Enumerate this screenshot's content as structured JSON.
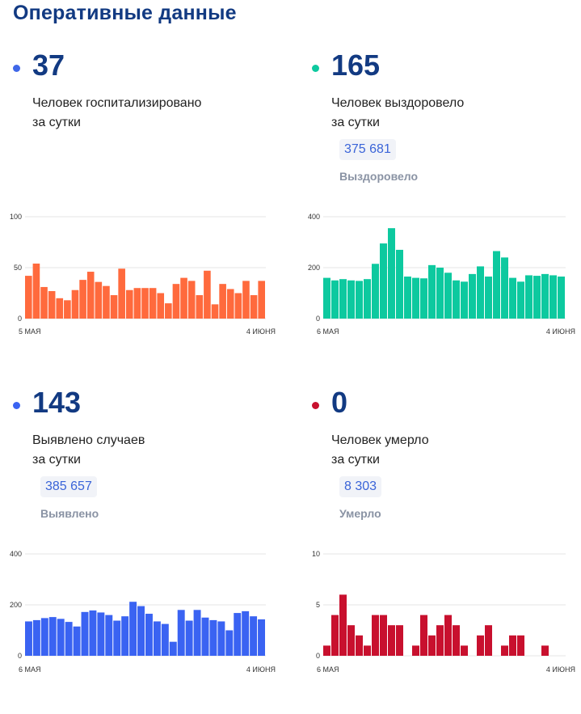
{
  "title": "Оперативные данные",
  "panels": [
    {
      "value": "37",
      "desc_line1": "Человек госпитализировано",
      "desc_line2": "за сутки",
      "color": "#ff6a3d",
      "dot_color": "#3f67e8"
    },
    {
      "value": "165",
      "desc_line1": "Человек выздоровело",
      "desc_line2": "за сутки",
      "total": "375 681",
      "total_caption": "Выздоровело",
      "color": "#0dc99f",
      "dot_color": "#0dc99f"
    },
    {
      "value": "143",
      "desc_line1": "Выявлено случаев",
      "desc_line2": "за сутки",
      "total": "385 657",
      "total_caption": "Выявлено",
      "color": "#3a63f2",
      "dot_color": "#3a63f2"
    },
    {
      "value": "0",
      "desc_line1": "Человек умерло",
      "desc_line2": "за сутки",
      "total": "8 303",
      "total_caption": "Умерло",
      "color": "#c8102e",
      "dot_color": "#c8102e"
    }
  ],
  "chart_data": [
    {
      "type": "bar",
      "ylim": [
        0,
        100
      ],
      "yticks": [
        "0",
        "50",
        "100"
      ],
      "x_start_label": "5 МАЯ",
      "x_end_label": "4 ИЮНЯ",
      "values": [
        42,
        54,
        31,
        27,
        20,
        18,
        28,
        38,
        46,
        36,
        32,
        23,
        49,
        28,
        30,
        30,
        30,
        25,
        15,
        34,
        40,
        37,
        23,
        47,
        14,
        34,
        29,
        25,
        37,
        23,
        37
      ]
    },
    {
      "type": "bar",
      "ylim": [
        0,
        400
      ],
      "yticks": [
        "0",
        "200",
        "400"
      ],
      "x_start_label": "6 МАЯ",
      "x_end_label": "4 ИЮНЯ",
      "values": [
        160,
        150,
        155,
        150,
        148,
        155,
        215,
        295,
        355,
        270,
        165,
        160,
        158,
        210,
        200,
        180,
        150,
        145,
        175,
        205,
        165,
        265,
        240,
        160,
        145,
        170,
        168,
        175,
        170,
        165
      ]
    },
    {
      "type": "bar",
      "ylim": [
        0,
        400
      ],
      "yticks": [
        "0",
        "200",
        "400"
      ],
      "x_start_label": "6 МАЯ",
      "x_end_label": "4 ИЮНЯ",
      "values": [
        135,
        140,
        148,
        152,
        145,
        133,
        115,
        172,
        178,
        170,
        160,
        138,
        155,
        212,
        195,
        165,
        135,
        125,
        55,
        180,
        138,
        180,
        150,
        140,
        135,
        100,
        168,
        175,
        155,
        143
      ]
    },
    {
      "type": "bar",
      "ylim": [
        0,
        10
      ],
      "yticks": [
        "0",
        "5",
        "10"
      ],
      "x_start_label": "6 МАЯ",
      "x_end_label": "4 ИЮНЯ",
      "values": [
        1,
        4,
        6,
        3,
        2,
        1,
        4,
        4,
        3,
        3,
        0,
        1,
        4,
        2,
        3,
        4,
        3,
        1,
        0,
        2,
        3,
        0,
        1,
        2,
        2,
        0,
        0,
        1,
        0,
        0
      ]
    }
  ]
}
